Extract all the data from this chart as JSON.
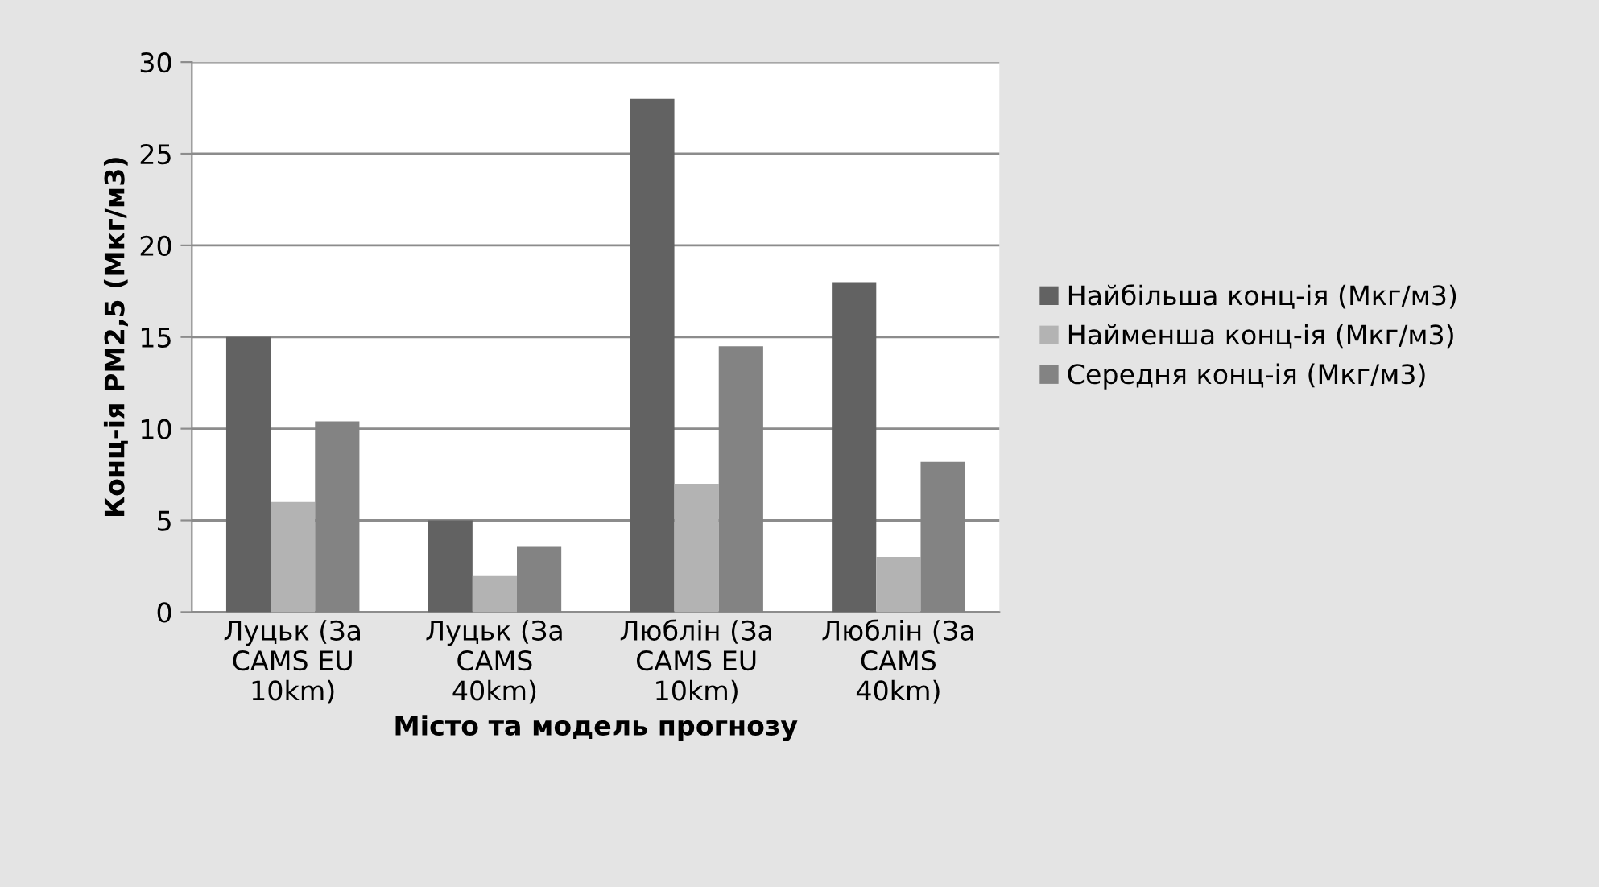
{
  "chart_data": {
    "type": "bar",
    "xlabel": "Місто та модель прогнозу",
    "ylabel": "Конц-ія PM2,5 (Мкг/м3)",
    "categories": [
      "Луцьк (За\nCAMS EU\n10km)",
      "Луцьк (За\nCAMS\n40km)",
      "Люблін (За\nCAMS EU\n10km)",
      "Люблін (За\nCAMS\n40km)"
    ],
    "series": [
      {
        "name": "Найбільша конц-ія (Мкг/м3)",
        "color": "#626262",
        "values": [
          15,
          5,
          28,
          18
        ]
      },
      {
        "name": "Найменша конц-ія (Мкг/м3)",
        "color": "#b3b3b3",
        "values": [
          6,
          2,
          7,
          3
        ]
      },
      {
        "name": "Середня конц-ія (Мкг/м3)",
        "color": "#838383",
        "values": [
          10.4,
          3.6,
          14.5,
          8.2
        ]
      }
    ],
    "ylim": [
      0,
      30
    ],
    "yticks": [
      0,
      5,
      10,
      15,
      20,
      25,
      30
    ],
    "grid": "y",
    "legend": "right"
  }
}
